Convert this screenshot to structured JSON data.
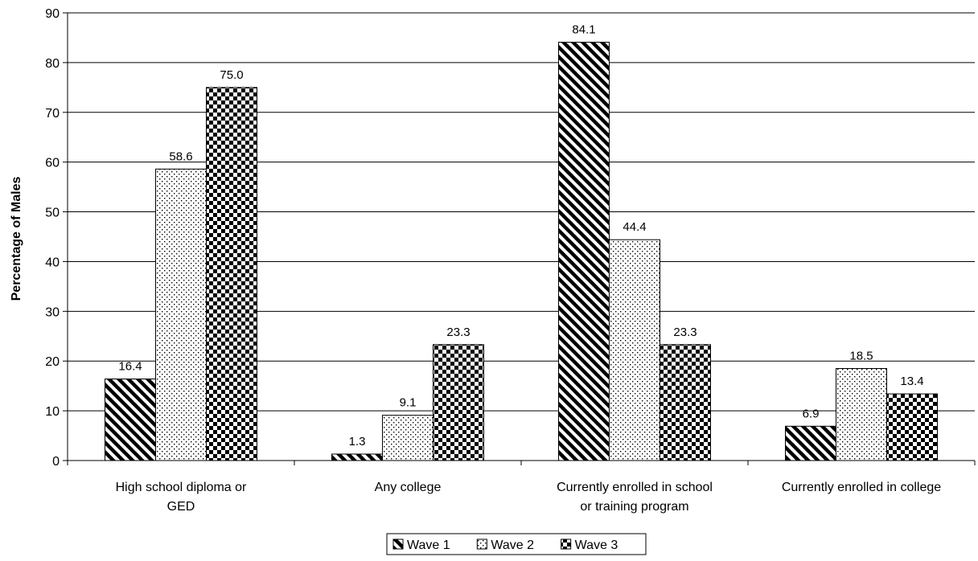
{
  "chart_data": {
    "type": "bar",
    "title": "",
    "xlabel": "",
    "ylabel": "Percentage of Males",
    "ylim": [
      0,
      90
    ],
    "yticks": [
      0,
      10,
      20,
      30,
      40,
      50,
      60,
      70,
      80,
      90
    ],
    "grid": true,
    "legend_position": "bottom",
    "categories": [
      [
        "High school diploma or",
        "GED"
      ],
      [
        "Any college"
      ],
      [
        "Currently enrolled in school",
        "or training program"
      ],
      [
        "Currently enrolled in college"
      ]
    ],
    "series": [
      {
        "name": "Wave 1",
        "pattern": "diagonal-stripes",
        "values": [
          16.4,
          1.3,
          84.1,
          6.9
        ],
        "labels": [
          "16.4",
          "1.3",
          "84.1",
          "6.9"
        ]
      },
      {
        "name": "Wave 2",
        "pattern": "dots",
        "values": [
          58.6,
          9.1,
          44.4,
          18.5
        ],
        "labels": [
          "58.6",
          "9.1",
          "44.4",
          "18.5"
        ]
      },
      {
        "name": "Wave 3",
        "pattern": "checkerboard",
        "values": [
          75.0,
          23.3,
          23.3,
          13.4
        ],
        "labels": [
          "75.0",
          "23.3",
          "23.3",
          "13.4"
        ]
      }
    ]
  }
}
